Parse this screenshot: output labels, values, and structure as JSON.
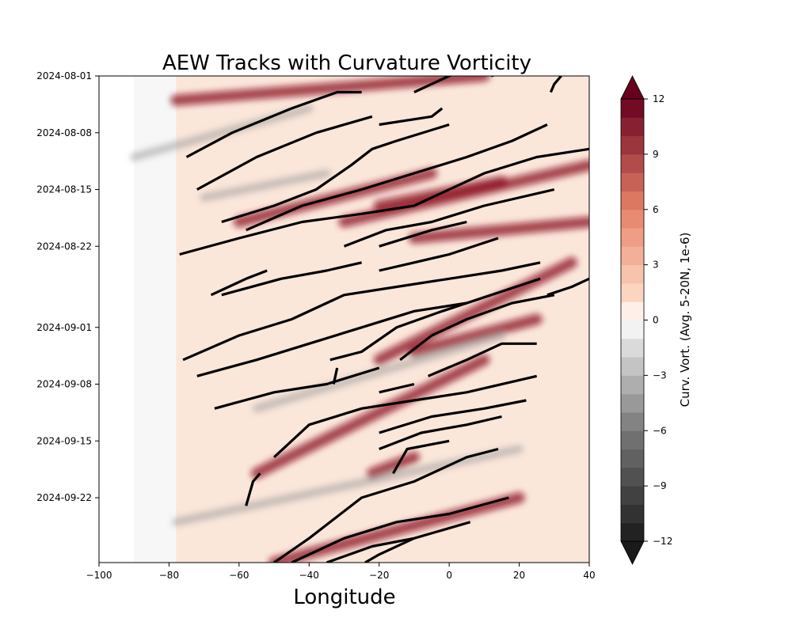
{
  "chart_data": {
    "type": "heatmap",
    "title": "AEW Tracks with Curvature Vorticity",
    "xlabel": "Longitude",
    "ylabel": "",
    "xlim": [
      -100,
      40
    ],
    "x_ticks": [
      -100,
      -80,
      -60,
      -40,
      -20,
      0,
      20,
      40
    ],
    "y_ticks": [
      "2024-08-01",
      "2024-08-08",
      "2024-08-15",
      "2024-08-22",
      "2024-09-01",
      "2024-09-08",
      "2024-09-15",
      "2024-09-22"
    ],
    "ylim": [
      "2024-08-01",
      "2024-09-30"
    ],
    "y_direction": "time increases downward",
    "no_data_region_longitude": [
      -100,
      -78
    ],
    "colorbar": {
      "label": "Curv. Vort. (Avg. 5-20N, 1e-6)",
      "range": [
        -12,
        12
      ],
      "ticks": [
        12,
        9,
        6,
        3,
        0,
        -3,
        -6,
        -9,
        -12
      ],
      "levels": 24,
      "extend": "both",
      "colormap": "RdGy_r",
      "positive_color": "#8b0a1f",
      "negative_color": "#262626"
    },
    "vorticity_streaks": [
      {
        "start_lon": -78,
        "start_date": "2024-08-04",
        "end_lon": 10,
        "end_date": "2024-08-01",
        "sign": "positive"
      },
      {
        "start_lon": -60,
        "start_date": "2024-08-19",
        "end_lon": -5,
        "end_date": "2024-08-13",
        "sign": "positive"
      },
      {
        "start_lon": -30,
        "start_date": "2024-08-19",
        "end_lon": 40,
        "end_date": "2024-08-12",
        "sign": "positive"
      },
      {
        "start_lon": -20,
        "start_date": "2024-08-17",
        "end_lon": 15,
        "end_date": "2024-08-14",
        "sign": "positive"
      },
      {
        "start_lon": -10,
        "start_date": "2024-08-21",
        "end_lon": 40,
        "end_date": "2024-08-19",
        "sign": "positive"
      },
      {
        "start_lon": -20,
        "start_date": "2024-09-05",
        "end_lon": 35,
        "end_date": "2024-08-24",
        "sign": "positive"
      },
      {
        "start_lon": -55,
        "start_date": "2024-09-19",
        "end_lon": 10,
        "end_date": "2024-09-05",
        "sign": "positive"
      },
      {
        "start_lon": -10,
        "start_date": "2024-09-04",
        "end_lon": 25,
        "end_date": "2024-08-31",
        "sign": "positive"
      },
      {
        "start_lon": -50,
        "start_date": "2024-09-30",
        "end_lon": 20,
        "end_date": "2024-09-22",
        "sign": "positive"
      },
      {
        "start_lon": -22,
        "start_date": "2024-09-19",
        "end_lon": -10,
        "end_date": "2024-09-17",
        "sign": "positive"
      },
      {
        "start_lon": -90,
        "start_date": "2024-08-11",
        "end_lon": -40,
        "end_date": "2024-08-05",
        "sign": "negative"
      },
      {
        "start_lon": -70,
        "start_date": "2024-08-16",
        "end_lon": -35,
        "end_date": "2024-08-13",
        "sign": "negative"
      },
      {
        "start_lon": -78,
        "start_date": "2024-09-25",
        "end_lon": 20,
        "end_date": "2024-09-16",
        "sign": "negative"
      },
      {
        "start_lon": -55,
        "start_date": "2024-09-11",
        "end_lon": 15,
        "end_date": "2024-09-02",
        "sign": "negative"
      }
    ],
    "tracks": [
      {
        "points": [
          [
            -75,
            "2024-08-11"
          ],
          [
            -62,
            "2024-08-08"
          ],
          [
            -45,
            "2024-08-05"
          ],
          [
            -32,
            "2024-08-03"
          ],
          [
            -25,
            "2024-08-03"
          ]
        ]
      },
      {
        "points": [
          [
            -72,
            "2024-08-15"
          ],
          [
            -55,
            "2024-08-11"
          ],
          [
            -38,
            "2024-08-08"
          ],
          [
            -22,
            "2024-08-06"
          ]
        ]
      },
      {
        "points": [
          [
            -20,
            "2024-08-07"
          ],
          [
            -5,
            "2024-08-06"
          ],
          [
            -2,
            "2024-08-05"
          ]
        ]
      },
      {
        "points": [
          [
            -10,
            "2024-08-03"
          ],
          [
            0,
            "2024-08-01"
          ],
          [
            8,
            "2024-08-00"
          ]
        ]
      },
      {
        "points": [
          [
            12,
            "2024-08-01"
          ],
          [
            20,
            "2024-08-00"
          ]
        ]
      },
      {
        "points": [
          [
            29,
            "2024-08-03"
          ],
          [
            30,
            "2024-08-02"
          ],
          [
            32,
            "2024-08-01"
          ]
        ]
      },
      {
        "points": [
          [
            -65,
            "2024-08-19"
          ],
          [
            -50,
            "2024-08-17"
          ],
          [
            -38,
            "2024-08-15"
          ],
          [
            -28,
            "2024-08-12"
          ],
          [
            -22,
            "2024-08-10"
          ],
          [
            -15,
            "2024-08-09"
          ],
          [
            0,
            "2024-08-07"
          ]
        ]
      },
      {
        "points": [
          [
            -58,
            "2024-08-20"
          ],
          [
            -42,
            "2024-08-17"
          ],
          [
            -25,
            "2024-08-15"
          ],
          [
            -10,
            "2024-08-13"
          ],
          [
            5,
            "2024-08-11"
          ],
          [
            18,
            "2024-08-09"
          ],
          [
            28,
            "2024-08-07"
          ]
        ]
      },
      {
        "points": [
          [
            -77,
            "2024-08-23"
          ],
          [
            -60,
            "2024-08-21"
          ],
          [
            -42,
            "2024-08-19"
          ],
          [
            -25,
            "2024-08-18"
          ],
          [
            -10,
            "2024-08-17"
          ],
          [
            10,
            "2024-08-13"
          ],
          [
            25,
            "2024-08-11"
          ],
          [
            40,
            "2024-08-10"
          ]
        ]
      },
      {
        "points": [
          [
            -30,
            "2024-08-22"
          ],
          [
            -18,
            "2024-08-20"
          ],
          [
            -5,
            "2024-08-19"
          ],
          [
            10,
            "2024-08-17"
          ],
          [
            30,
            "2024-08-15"
          ]
        ]
      },
      {
        "points": [
          [
            -20,
            "2024-08-22"
          ],
          [
            -5,
            "2024-08-20"
          ],
          [
            5,
            "2024-08-19"
          ]
        ]
      },
      {
        "points": [
          [
            -20,
            "2024-08-25"
          ],
          [
            -10,
            "2024-08-24"
          ],
          [
            0,
            "2024-08-23"
          ],
          [
            14,
            "2024-08-21"
          ]
        ]
      },
      {
        "points": [
          [
            -68,
            "2024-08-28"
          ],
          [
            -58,
            "2024-08-26"
          ],
          [
            -52,
            "2024-08-25"
          ]
        ]
      },
      {
        "points": [
          [
            -65,
            "2024-08-28"
          ],
          [
            -48,
            "2024-08-26"
          ],
          [
            -35,
            "2024-08-25"
          ],
          [
            -25,
            "2024-08-24"
          ]
        ]
      },
      {
        "points": [
          [
            -76,
            "2024-09-05"
          ],
          [
            -60,
            "2024-09-02"
          ],
          [
            -45,
            "2024-09-00"
          ],
          [
            -30,
            "2024-08-28"
          ],
          [
            -15,
            "2024-08-27"
          ],
          [
            0,
            "2024-08-26"
          ],
          [
            15,
            "2024-08-25"
          ],
          [
            26,
            "2024-08-24"
          ]
        ]
      },
      {
        "points": [
          [
            -72,
            "2024-09-07"
          ],
          [
            -55,
            "2024-09-05"
          ],
          [
            -40,
            "2024-09-03"
          ],
          [
            -25,
            "2024-09-01"
          ],
          [
            -10,
            "2024-08-30"
          ],
          [
            5,
            "2024-08-29"
          ]
        ]
      },
      {
        "points": [
          [
            -34,
            "2024-09-05"
          ],
          [
            -25,
            "2024-09-04"
          ],
          [
            -15,
            "2024-09-01"
          ],
          [
            -2,
            "2024-08-30"
          ],
          [
            12,
            "2024-08-28"
          ],
          [
            26,
            "2024-08-26"
          ]
        ]
      },
      {
        "points": [
          [
            -14,
            "2024-09-05"
          ],
          [
            -5,
            "2024-09-02"
          ],
          [
            5,
            "2024-09-00"
          ],
          [
            18,
            "2024-08-29"
          ],
          [
            30,
            "2024-08-28"
          ]
        ]
      },
      {
        "points": [
          [
            -6,
            "2024-09-07"
          ],
          [
            5,
            "2024-09-05"
          ],
          [
            15,
            "2024-09-03"
          ],
          [
            25,
            "2024-09-03"
          ]
        ]
      },
      {
        "points": [
          [
            28,
            "2024-08-28"
          ],
          [
            35,
            "2024-08-27"
          ],
          [
            40,
            "2024-08-26"
          ]
        ]
      },
      {
        "points": [
          [
            -67,
            "2024-09-11"
          ],
          [
            -50,
            "2024-09-09"
          ],
          [
            -35,
            "2024-09-08"
          ],
          [
            -20,
            "2024-09-06"
          ]
        ]
      },
      {
        "points": [
          [
            -33,
            "2024-09-08"
          ],
          [
            -32,
            "2024-09-06"
          ]
        ]
      },
      {
        "points": [
          [
            -20,
            "2024-09-09"
          ],
          [
            -10,
            "2024-09-08"
          ]
        ]
      },
      {
        "points": [
          [
            -50,
            "2024-09-17"
          ],
          [
            -40,
            "2024-09-13"
          ],
          [
            -25,
            "2024-09-11"
          ],
          [
            -10,
            "2024-09-10"
          ],
          [
            5,
            "2024-09-09"
          ],
          [
            25,
            "2024-09-07"
          ]
        ]
      },
      {
        "points": [
          [
            -20,
            "2024-09-14"
          ],
          [
            -5,
            "2024-09-12"
          ],
          [
            10,
            "2024-09-11"
          ],
          [
            22,
            "2024-09-10"
          ]
        ]
      },
      {
        "points": [
          [
            -20,
            "2024-09-16"
          ],
          [
            -8,
            "2024-09-14"
          ],
          [
            5,
            "2024-09-13"
          ],
          [
            15,
            "2024-09-12"
          ]
        ]
      },
      {
        "points": [
          [
            -16,
            "2024-09-19"
          ],
          [
            -12,
            "2024-09-16"
          ],
          [
            0,
            "2024-09-15"
          ]
        ]
      },
      {
        "points": [
          [
            -58,
            "2024-09-23"
          ],
          [
            -56,
            "2024-09-20"
          ],
          [
            -54,
            "2024-09-19"
          ]
        ]
      },
      {
        "points": [
          [
            -50,
            "2024-09-30"
          ],
          [
            -40,
            "2024-09-27"
          ],
          [
            -25,
            "2024-09-22"
          ],
          [
            -10,
            "2024-09-20"
          ],
          [
            5,
            "2024-09-17"
          ],
          [
            14,
            "2024-09-16"
          ]
        ]
      },
      {
        "points": [
          [
            -45,
            "2024-09-30"
          ],
          [
            -30,
            "2024-09-27"
          ],
          [
            -15,
            "2024-09-25"
          ],
          [
            0,
            "2024-09-24"
          ],
          [
            17,
            "2024-09-22"
          ]
        ]
      },
      {
        "points": [
          [
            -35,
            "2024-09-30"
          ],
          [
            -22,
            "2024-09-28"
          ],
          [
            -10,
            "2024-09-27"
          ],
          [
            6,
            "2024-09-25"
          ]
        ]
      },
      {
        "points": [
          [
            -24,
            "2024-09-30"
          ],
          [
            -20,
            "2024-09-29"
          ],
          [
            -10,
            "2024-09-27"
          ]
        ]
      }
    ]
  }
}
